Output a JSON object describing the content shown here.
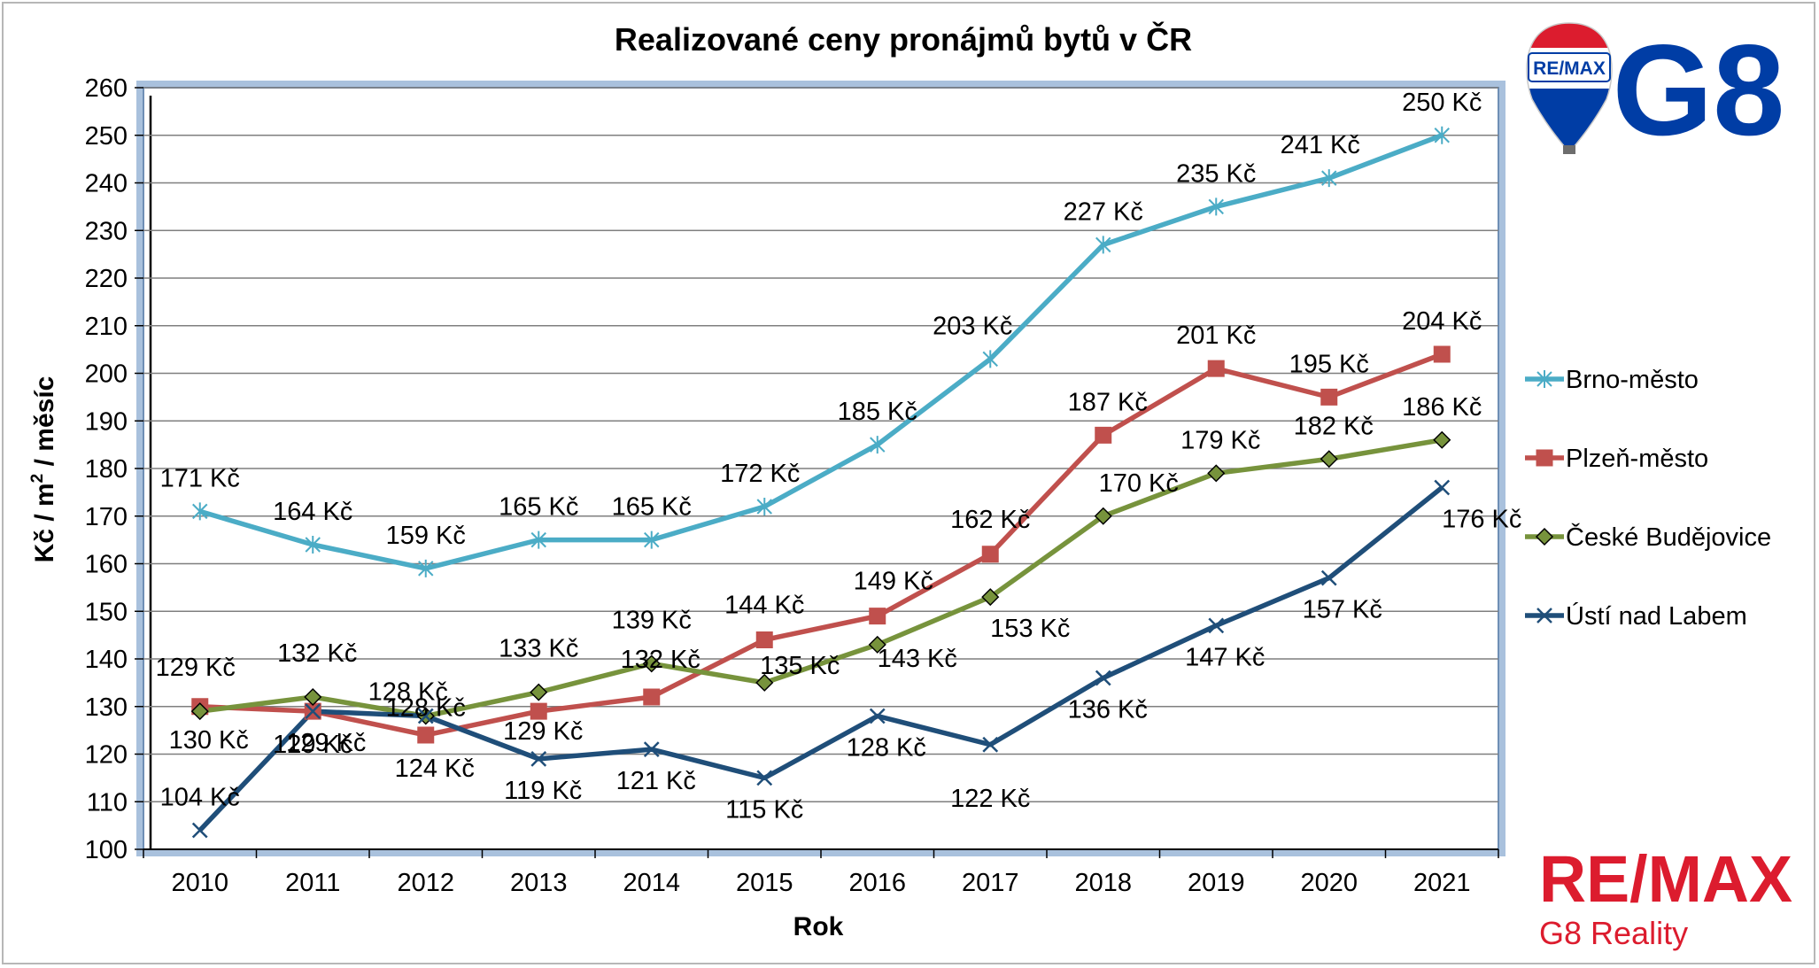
{
  "chart_data": {
    "type": "line",
    "title": "Realizované ceny pronájmů bytů v ČR",
    "xlabel": "Rok",
    "ylabel_parts": {
      "before": "Kč / m",
      "sup": "2",
      "after": " / měsíc"
    },
    "ylim": [
      100,
      260
    ],
    "ytick_step": 10,
    "grid": true,
    "legend_position": "right",
    "x": [
      "2010",
      "2011",
      "2012",
      "2013",
      "2014",
      "2015",
      "2016",
      "2017",
      "2018",
      "2019",
      "2020",
      "2021"
    ],
    "series": [
      {
        "name": "Brno-město",
        "color": "#4bacc6",
        "marker": "star",
        "values": [
          171,
          164,
          159,
          165,
          165,
          172,
          185,
          203,
          227,
          235,
          241,
          250
        ],
        "labels": [
          "171 Kč",
          "164 Kč",
          "159 Kč",
          "165 Kč",
          "165 Kč",
          "172 Kč",
          "185 Kč",
          "203 Kč",
          "227 Kč",
          "235 Kč",
          "241 Kč",
          "250 Kč"
        ]
      },
      {
        "name": "Plzeň-město",
        "color": "#c0504d",
        "marker": "square",
        "values": [
          130,
          129,
          124,
          129,
          132,
          144,
          149,
          162,
          187,
          201,
          195,
          204
        ],
        "labels": [
          "130 Kč",
          "129 Kč",
          "124 Kč",
          "129 Kč",
          "132 Kč",
          "144 Kč",
          "149 Kč",
          "162 Kč",
          "187 Kč",
          "201 Kč",
          "195 Kč",
          "204 Kč"
        ]
      },
      {
        "name": "České Budějovice",
        "color": "#77933c",
        "marker": "diamond",
        "values": [
          129,
          132,
          128,
          133,
          139,
          135,
          143,
          153,
          170,
          179,
          182,
          186
        ],
        "labels": [
          "129 Kč",
          "132 Kč",
          "128 Kč",
          "133 Kč",
          "139 Kč",
          "135 Kč",
          "143 Kč",
          "153 Kč",
          "170 Kč",
          "179 Kč",
          "182 Kč",
          "186 Kč"
        ]
      },
      {
        "name": "Ústí nad Labem",
        "color": "#1f4e79",
        "marker": "x",
        "values": [
          104,
          129,
          128,
          119,
          121,
          115,
          128,
          122,
          136,
          147,
          157,
          176
        ],
        "labels": [
          "104 Kč",
          "129 Kč",
          "128 Kč",
          "119 Kč",
          "121 Kč",
          "115 Kč",
          "128 Kč",
          "122 Kč",
          "136 Kč",
          "147 Kč",
          "157 Kč",
          "176 Kč"
        ]
      }
    ]
  },
  "branding": {
    "badge_text": "RE/MAX",
    "g8_text": "G8",
    "footer_brand": "RE/MAX",
    "footer_sub": "G8 Reality",
    "remax_red": "#dc1c2e",
    "remax_blue": "#003da5"
  }
}
